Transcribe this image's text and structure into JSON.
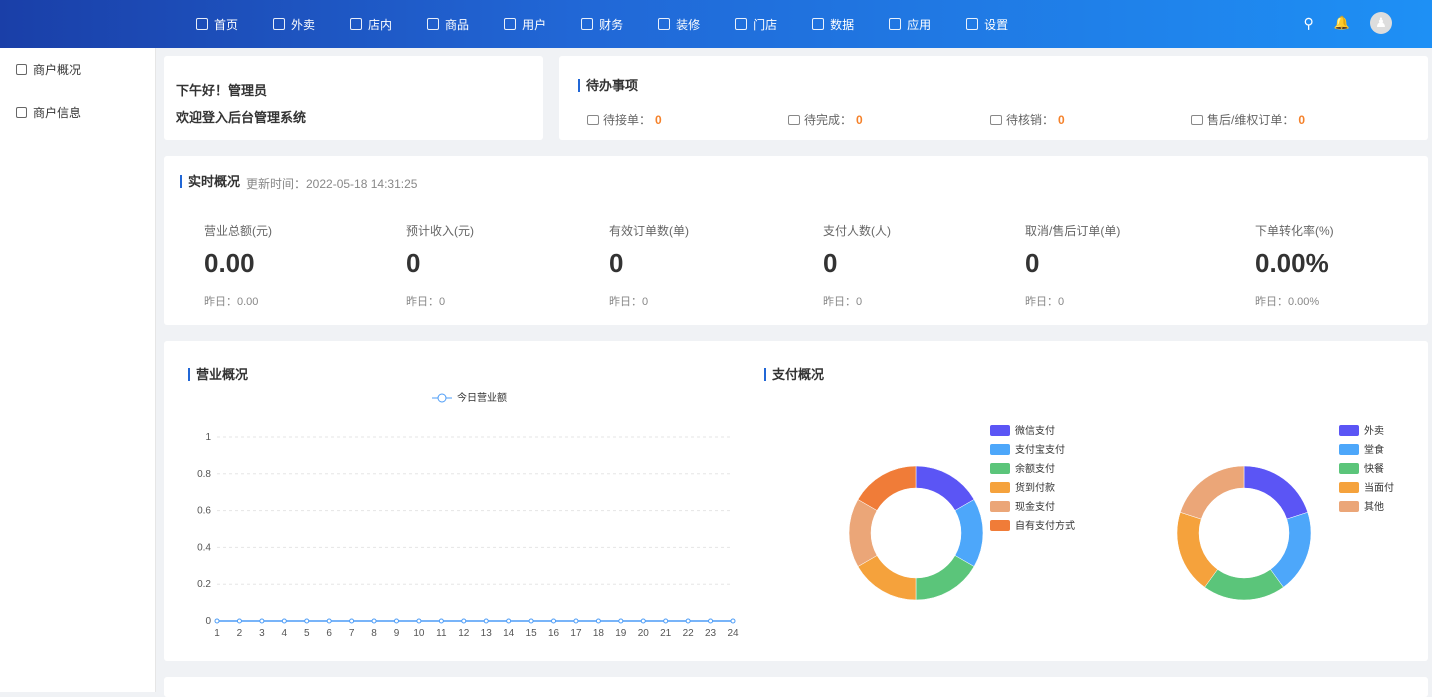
{
  "nav": {
    "items": [
      {
        "label": "首页",
        "icon": "home-icon"
      },
      {
        "label": "外卖",
        "icon": "delivery-icon"
      },
      {
        "label": "店内",
        "icon": "store-icon"
      },
      {
        "label": "商品",
        "icon": "goods-icon"
      },
      {
        "label": "用户",
        "icon": "user-icon"
      },
      {
        "label": "财务",
        "icon": "money-icon"
      },
      {
        "label": "装修",
        "icon": "decor-icon"
      },
      {
        "label": "门店",
        "icon": "shop-icon"
      },
      {
        "label": "数据",
        "icon": "chart-icon"
      },
      {
        "label": "应用",
        "icon": "apps-icon"
      },
      {
        "label": "设置",
        "icon": "gear-icon"
      }
    ]
  },
  "sidebar": {
    "items": [
      {
        "label": "商户概况"
      },
      {
        "label": "商户信息"
      }
    ]
  },
  "welcome": {
    "line1": "下午好！管理员",
    "line2": "欢迎登入后台管理系统"
  },
  "todo": {
    "title": "待办事项",
    "items": [
      {
        "label": "待接单：",
        "value": "0"
      },
      {
        "label": "待完成：",
        "value": "0"
      },
      {
        "label": "待核销：",
        "value": "0"
      },
      {
        "label": "售后/维权订单：",
        "value": "0"
      }
    ]
  },
  "realtime": {
    "title": "实时概况",
    "updated": "更新时间：2022-05-18 14:31:25",
    "stats": [
      {
        "label": "营业总额(元)",
        "value": "0.00",
        "yesterday": "昨日：0.00"
      },
      {
        "label": "预计收入(元)",
        "value": "0",
        "yesterday": "昨日：0"
      },
      {
        "label": "有效订单数(单)",
        "value": "0",
        "yesterday": "昨日：0"
      },
      {
        "label": "支付人数(人)",
        "value": "0",
        "yesterday": "昨日：0"
      },
      {
        "label": "取消/售后订单(单)",
        "value": "0",
        "yesterday": "昨日：0"
      },
      {
        "label": "下单转化率(%)",
        "value": "0.00%",
        "yesterday": "昨日：0.00%"
      }
    ]
  },
  "chart_data": [
    {
      "type": "line",
      "title": "营业概况",
      "series": [
        {
          "name": "今日营业额",
          "values": [
            0,
            0,
            0,
            0,
            0,
            0,
            0,
            0,
            0,
            0,
            0,
            0,
            0,
            0,
            0,
            0,
            0,
            0,
            0,
            0,
            0,
            0,
            0,
            0
          ]
        }
      ],
      "x": [
        1,
        2,
        3,
        4,
        5,
        6,
        7,
        8,
        9,
        10,
        11,
        12,
        13,
        14,
        15,
        16,
        17,
        18,
        19,
        20,
        21,
        22,
        23,
        24
      ],
      "yticks": [
        0,
        0.2,
        0.4,
        0.6,
        0.8,
        1
      ],
      "ylim": [
        0,
        1
      ],
      "grid": true,
      "legend": "top",
      "color": "#4c9cf7"
    },
    {
      "type": "pie",
      "title": "支付概况",
      "donut": true,
      "categories": [
        "微信支付",
        "支付宝支付",
        "余额支付",
        "货到付款",
        "现金支付",
        "自有支付方式"
      ],
      "values": [
        1,
        1,
        1,
        1,
        1,
        1
      ],
      "colors": [
        "#5b55f5",
        "#4da7fa",
        "#5bc57a",
        "#f5a23c",
        "#eba678",
        "#f07c38"
      ],
      "legend": "right"
    },
    {
      "type": "pie",
      "donut": true,
      "categories": [
        "外卖",
        "堂食",
        "快餐",
        "当面付",
        "其他"
      ],
      "values": [
        1,
        1,
        1,
        1,
        1
      ],
      "colors": [
        "#5b55f5",
        "#4da7fa",
        "#5bc57a",
        "#f5a23c",
        "#eba678"
      ],
      "legend": "right"
    }
  ]
}
